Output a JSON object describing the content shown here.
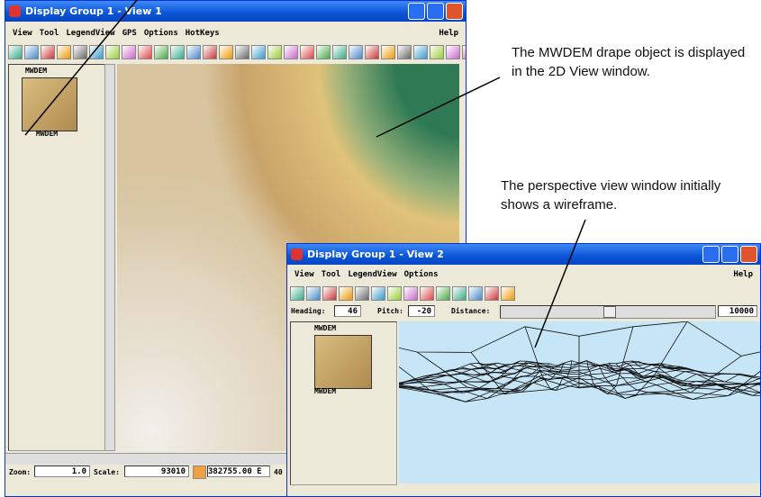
{
  "window1": {
    "title": "Display Group 1 - View 1",
    "menu": [
      "View",
      "Tool",
      "LegendView",
      "GPS",
      "Options",
      "HotKeys"
    ],
    "help": "Help",
    "layers": [
      "MWDEM",
      "MWDEM"
    ],
    "zoom_label": "Zoom:",
    "zoom": "1.0",
    "scale_label": "Scale:",
    "scale": "93010",
    "coordinate": "382755.00 E",
    "coordinate_cut": "40"
  },
  "window2": {
    "title": "Display Group 1 - View 2",
    "menu": [
      "View",
      "Tool",
      "LegendView",
      "Options"
    ],
    "help": "Help",
    "heading_label": "Heading:",
    "heading": "46",
    "pitch_label": "Pitch:",
    "pitch": "-20",
    "distance_label": "Distance:",
    "distance": "10000",
    "layers": [
      "MWDEM",
      "MWDEM"
    ]
  },
  "annotations": {
    "drape": "The MWDEM drape object is displayed in the 2D View window.",
    "wireframe": "The perspective view window initially shows a wireframe."
  }
}
